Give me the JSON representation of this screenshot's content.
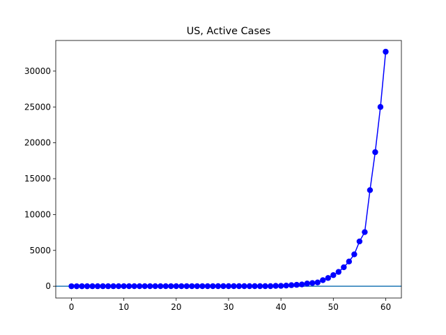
{
  "chart_data": {
    "type": "line",
    "title": "US, Active Cases",
    "xlabel": "",
    "ylabel": "",
    "xlim": [
      -3,
      63
    ],
    "ylim": [
      -1640,
      34270
    ],
    "grid": false,
    "x_ticks": [
      0,
      10,
      20,
      30,
      40,
      50,
      60
    ],
    "y_ticks": [
      0,
      5000,
      10000,
      15000,
      20000,
      25000,
      30000
    ],
    "series": [
      {
        "color": "#0000ff",
        "marker": "circle",
        "x": [
          0,
          1,
          2,
          3,
          4,
          5,
          6,
          7,
          8,
          9,
          10,
          11,
          12,
          13,
          14,
          15,
          16,
          17,
          18,
          19,
          20,
          21,
          22,
          23,
          24,
          25,
          26,
          27,
          28,
          29,
          30,
          31,
          32,
          33,
          34,
          35,
          36,
          37,
          38,
          39,
          40,
          41,
          42,
          43,
          44,
          45,
          46,
          47,
          48,
          49,
          50,
          51,
          52,
          53,
          54,
          55,
          56,
          57,
          58,
          59,
          60
        ],
        "values": [
          1,
          1,
          2,
          2,
          5,
          5,
          5,
          5,
          5,
          6,
          6,
          7,
          8,
          11,
          11,
          11,
          11,
          11,
          11,
          11,
          11,
          11,
          12,
          12,
          13,
          13,
          13,
          13,
          14,
          14,
          14,
          15,
          15,
          15,
          15,
          15,
          15,
          15,
          15,
          50,
          54,
          95,
          150,
          200,
          250,
          380,
          450,
          530,
          850,
          1150,
          1550,
          2000,
          2650,
          3450,
          4450,
          6250,
          7550,
          13400,
          18700,
          25000,
          32700
        ]
      }
    ],
    "hline": {
      "y": 0,
      "color": "#1f77b4"
    },
    "colors": {
      "axes": "#000000",
      "background": "#ffffff"
    }
  }
}
